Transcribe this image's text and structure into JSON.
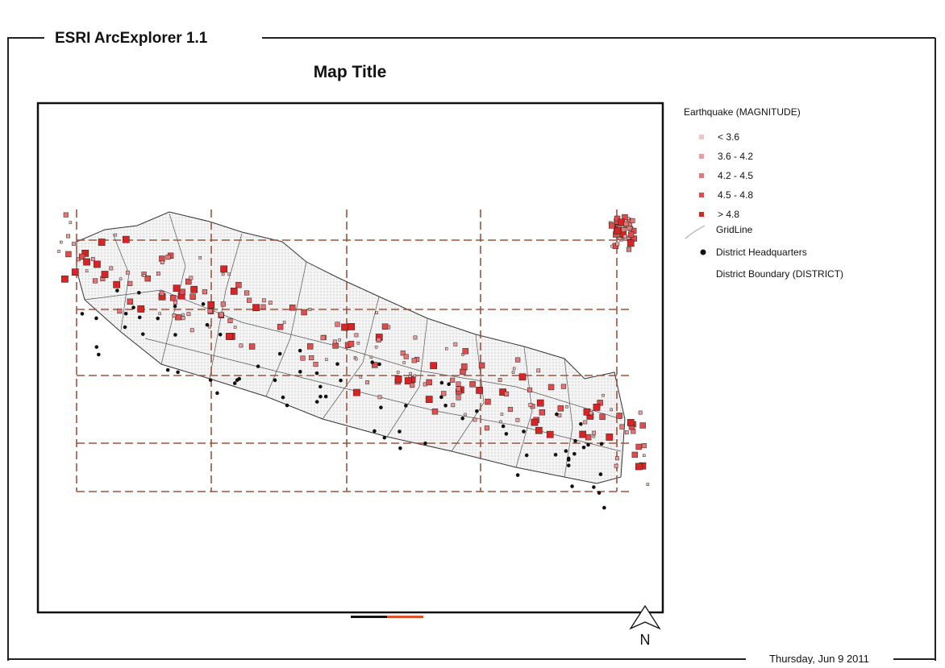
{
  "app_title": "ESRI ArcExplorer 1.1",
  "map_title": "Map Title",
  "legend": {
    "title": "Earthquake (MAGNITUDE)",
    "classes": [
      {
        "label": "< 3.6",
        "color": "#f3c4c4"
      },
      {
        "label": "3.6 - 4.2",
        "color": "#ee9c9c"
      },
      {
        "label": "4.2 - 4.5",
        "color": "#e87474"
      },
      {
        "label": "4.5 - 4.8",
        "color": "#e04c4c"
      },
      {
        "label": "> 4.8",
        "color": "#d82424"
      }
    ],
    "gridline": "GridLine",
    "headquarters": "District Headquarters",
    "boundary": "District Boundary (DISTRICT)"
  },
  "north": "N",
  "date": "Thursday, Jun 9 2011"
}
